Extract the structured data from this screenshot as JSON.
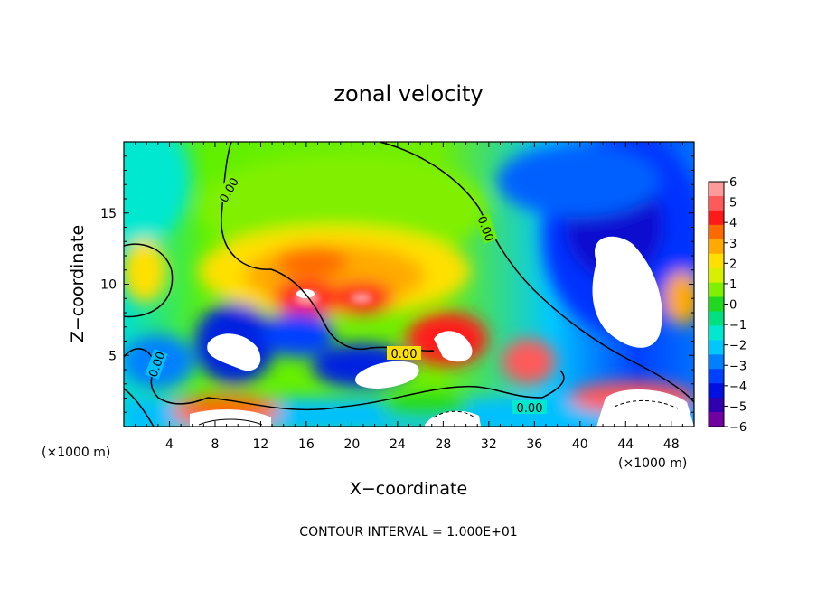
{
  "chart_data": {
    "type": "heatmap",
    "title": "zonal velocity",
    "xlabel": "X−coordinate",
    "ylabel": "Z−coordinate",
    "x_unit_left": "(×1000 m)",
    "x_unit_right": "(×1000 m)",
    "xlim": [
      0,
      50
    ],
    "ylim": [
      0,
      20
    ],
    "x_ticks": [
      4,
      8,
      12,
      16,
      20,
      24,
      28,
      32,
      36,
      40,
      44,
      48
    ],
    "x_tick_labels": [
      "4",
      "8",
      "12",
      "16",
      "20",
      "24",
      "28",
      "32",
      "36",
      "40",
      "44",
      "48"
    ],
    "y_ticks": [
      5,
      10,
      15
    ],
    "y_tick_labels": [
      "5",
      "10",
      "15"
    ],
    "colorbar": {
      "min": -6,
      "max": 6,
      "ticks": [
        6,
        5,
        4,
        3,
        2,
        1,
        0,
        -1,
        -2,
        -3,
        -4,
        -5,
        -6
      ],
      "tick_labels": [
        "6",
        "5",
        "4",
        "3",
        "2",
        "1",
        "0",
        "−1",
        "−2",
        "−3",
        "−4",
        "−5",
        "−6"
      ],
      "colors": [
        "#ff9a9a",
        "#ff5a5a",
        "#ff1a1a",
        "#ff6a00",
        "#ffaa00",
        "#ffe000",
        "#d8f000",
        "#80f000",
        "#20d820",
        "#00e080",
        "#00e8d0",
        "#00c8ff",
        "#0080ff",
        "#0040ff",
        "#0010e0",
        "#3000b0",
        "#7000a0"
      ]
    },
    "contour_labels": [
      "0.00",
      "0.00",
      "0.00",
      "0.00",
      "0.00"
    ],
    "annotation": "CONTOUR INTERVAL = 1.000E+01"
  }
}
